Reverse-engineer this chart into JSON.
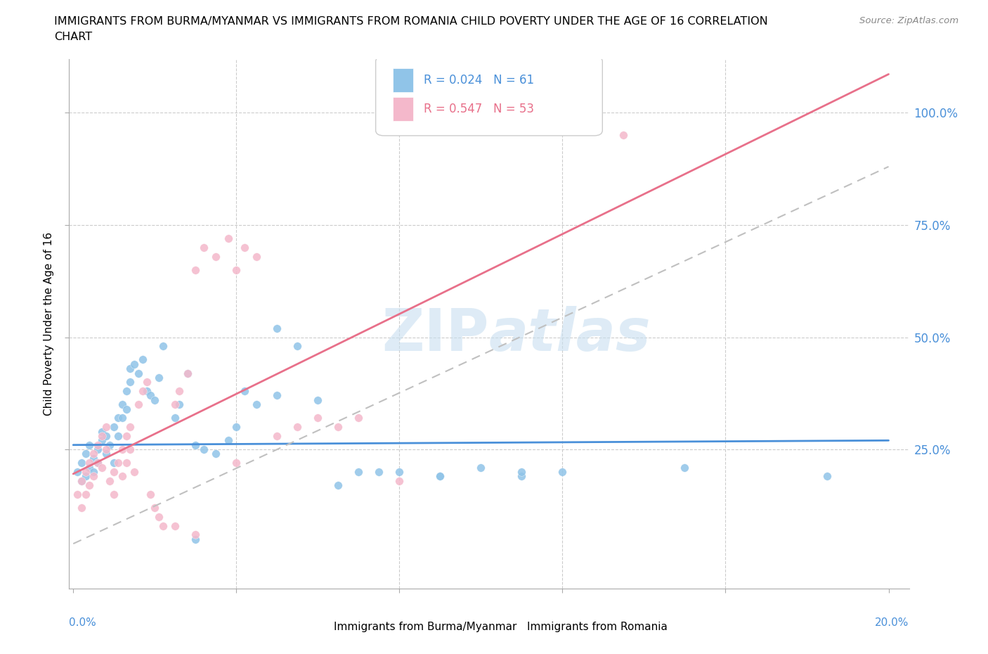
{
  "title_line1": "IMMIGRANTS FROM BURMA/MYANMAR VS IMMIGRANTS FROM ROMANIA CHILD POVERTY UNDER THE AGE OF 16 CORRELATION",
  "title_line2": "CHART",
  "source": "Source: ZipAtlas.com",
  "ylabel": "Child Poverty Under the Age of 16",
  "ytick_labels": [
    "100.0%",
    "75.0%",
    "50.0%",
    "25.0%"
  ],
  "ytick_values": [
    1.0,
    0.75,
    0.5,
    0.25
  ],
  "xlim": [
    -0.001,
    0.205
  ],
  "ylim": [
    -0.06,
    1.12
  ],
  "burma_color": "#90c4e8",
  "romania_color": "#f4b8cb",
  "burma_line_color": "#4a90d9",
  "romania_line_color": "#e8708a",
  "watermark_color": "#c8dff0",
  "legend_burma_R": "0.024",
  "legend_burma_N": "61",
  "legend_romania_R": "0.547",
  "legend_romania_N": "53",
  "legend_label_burma": "Immigrants from Burma/Myanmar",
  "legend_label_romania": "Immigrants from Romania",
  "burma_regression": [
    0.0,
    0.2,
    0.26,
    0.27
  ],
  "romania_regression": [
    0.0,
    0.2,
    0.04,
    0.88
  ],
  "burma_x": [
    0.001,
    0.002,
    0.002,
    0.003,
    0.003,
    0.004,
    0.004,
    0.005,
    0.005,
    0.006,
    0.006,
    0.007,
    0.007,
    0.008,
    0.008,
    0.009,
    0.01,
    0.01,
    0.011,
    0.011,
    0.012,
    0.012,
    0.013,
    0.013,
    0.014,
    0.014,
    0.015,
    0.016,
    0.017,
    0.018,
    0.019,
    0.02,
    0.021,
    0.022,
    0.025,
    0.026,
    0.028,
    0.03,
    0.032,
    0.035,
    0.038,
    0.04,
    0.042,
    0.045,
    0.05,
    0.055,
    0.06,
    0.065,
    0.07,
    0.08,
    0.09,
    0.1,
    0.11,
    0.12,
    0.05,
    0.075,
    0.09,
    0.11,
    0.15,
    0.185,
    0.03
  ],
  "burma_y": [
    0.2,
    0.22,
    0.18,
    0.24,
    0.19,
    0.21,
    0.26,
    0.2,
    0.23,
    0.22,
    0.25,
    0.27,
    0.29,
    0.24,
    0.28,
    0.26,
    0.3,
    0.22,
    0.28,
    0.32,
    0.32,
    0.35,
    0.34,
    0.38,
    0.4,
    0.43,
    0.44,
    0.42,
    0.45,
    0.38,
    0.37,
    0.36,
    0.41,
    0.48,
    0.32,
    0.35,
    0.42,
    0.26,
    0.25,
    0.24,
    0.27,
    0.3,
    0.38,
    0.35,
    0.37,
    0.48,
    0.36,
    0.17,
    0.2,
    0.2,
    0.19,
    0.21,
    0.19,
    0.2,
    0.52,
    0.2,
    0.19,
    0.2,
    0.21,
    0.19,
    0.05
  ],
  "romania_x": [
    0.001,
    0.002,
    0.002,
    0.003,
    0.003,
    0.004,
    0.004,
    0.005,
    0.005,
    0.006,
    0.006,
    0.007,
    0.007,
    0.008,
    0.008,
    0.009,
    0.01,
    0.01,
    0.011,
    0.012,
    0.012,
    0.013,
    0.013,
    0.014,
    0.014,
    0.015,
    0.016,
    0.017,
    0.018,
    0.019,
    0.02,
    0.021,
    0.022,
    0.025,
    0.026,
    0.028,
    0.03,
    0.032,
    0.035,
    0.038,
    0.04,
    0.042,
    0.045,
    0.05,
    0.055,
    0.06,
    0.065,
    0.07,
    0.08,
    0.04,
    0.025,
    0.03,
    0.135
  ],
  "romania_y": [
    0.15,
    0.18,
    0.12,
    0.2,
    0.15,
    0.22,
    0.17,
    0.24,
    0.19,
    0.26,
    0.22,
    0.28,
    0.21,
    0.3,
    0.25,
    0.18,
    0.2,
    0.15,
    0.22,
    0.19,
    0.25,
    0.28,
    0.22,
    0.3,
    0.25,
    0.2,
    0.35,
    0.38,
    0.4,
    0.15,
    0.12,
    0.1,
    0.08,
    0.35,
    0.38,
    0.42,
    0.65,
    0.7,
    0.68,
    0.72,
    0.65,
    0.7,
    0.68,
    0.28,
    0.3,
    0.32,
    0.3,
    0.32,
    0.18,
    0.22,
    0.08,
    0.06,
    0.95
  ]
}
